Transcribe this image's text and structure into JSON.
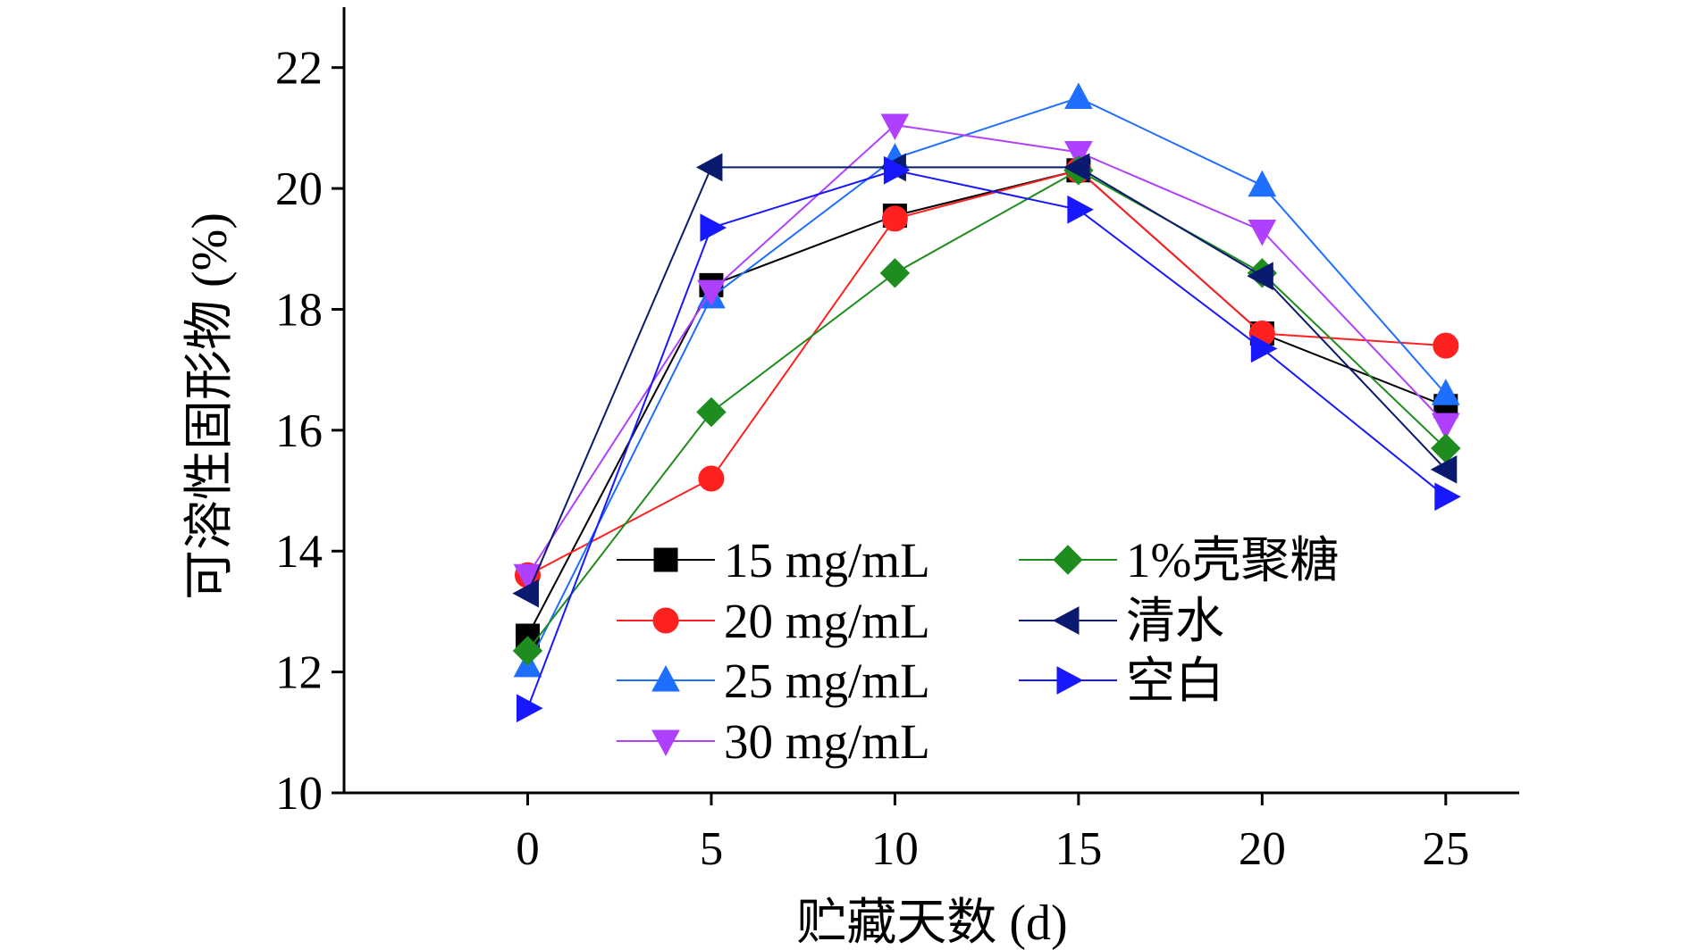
{
  "chart_data": {
    "type": "line",
    "title": "",
    "xlabel": "贮藏天数 (d)",
    "ylabel": "可溶性固形物 (%)",
    "x": [
      0,
      5,
      10,
      15,
      20,
      25
    ],
    "xlim": [
      -5,
      27
    ],
    "ylim": [
      10,
      23
    ],
    "xticks": [
      "0",
      "5",
      "10",
      "15",
      "20",
      "25"
    ],
    "yticks": [
      "10",
      "12",
      "14",
      "16",
      "18",
      "20",
      "22"
    ],
    "legend_position": "bottom-center",
    "series": [
      {
        "name": "15 mg/mL",
        "values": [
          12.6,
          18.4,
          19.55,
          20.3,
          17.6,
          16.4
        ],
        "color": "#000000",
        "marker": "square"
      },
      {
        "name": "20 mg/mL",
        "values": [
          13.6,
          15.2,
          19.5,
          20.3,
          17.6,
          17.4
        ],
        "color": "#ff2020",
        "marker": "circle"
      },
      {
        "name": "25 mg/mL",
        "values": [
          12.1,
          18.2,
          20.5,
          21.5,
          20.05,
          16.6
        ],
        "color": "#1e6eff",
        "marker": "triangle-up"
      },
      {
        "name": "30 mg/mL",
        "values": [
          13.6,
          18.3,
          21.05,
          20.6,
          19.3,
          16.1
        ],
        "color": "#b040ff",
        "marker": "triangle-down"
      },
      {
        "name": "1%壳聚糖",
        "values": [
          12.35,
          16.3,
          18.6,
          20.3,
          18.6,
          15.7
        ],
        "color": "#1e8c1e",
        "marker": "diamond"
      },
      {
        "name": "清水",
        "values": [
          13.3,
          20.35,
          20.35,
          20.35,
          18.55,
          15.35
        ],
        "color": "#0a1a6e",
        "marker": "triangle-left"
      },
      {
        "name": "空白",
        "values": [
          11.4,
          19.35,
          20.3,
          19.65,
          17.35,
          14.9
        ],
        "color": "#1818ff",
        "marker": "triangle-right"
      }
    ]
  }
}
